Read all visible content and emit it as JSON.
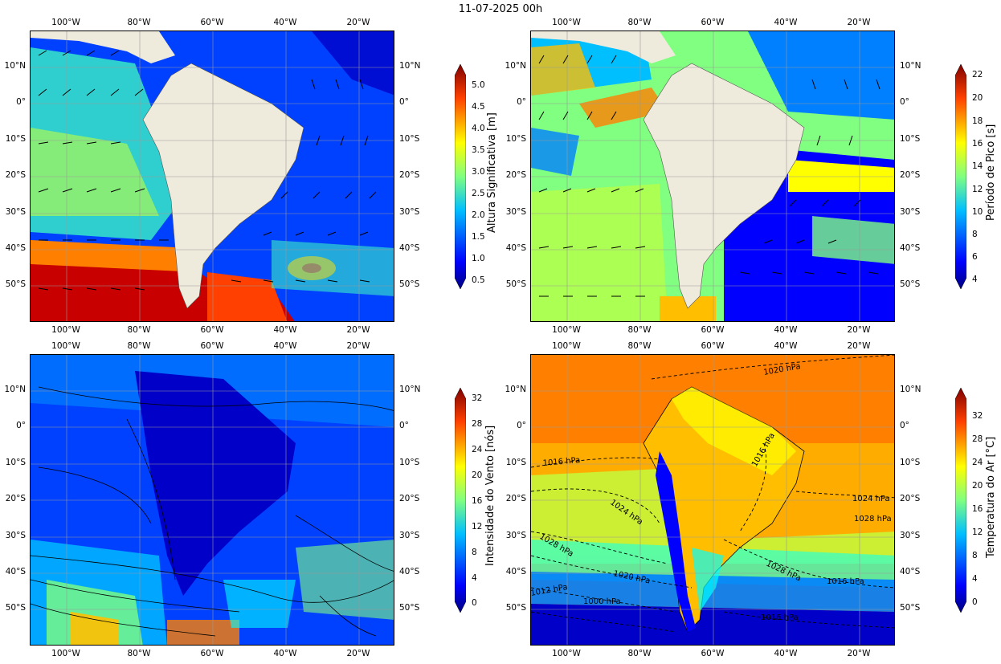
{
  "title": "11-07-2025 00h",
  "lon_ticks": [
    "100°W",
    "80°W",
    "60°W",
    "40°W",
    "20°W"
  ],
  "lat_ticks": [
    "10°N",
    "0°",
    "10°S",
    "20°S",
    "30°S",
    "40°S",
    "50°S"
  ],
  "panels": [
    {
      "id": "wave-height",
      "colorbar": {
        "label": "Altura Significativa [m]",
        "ticks": [
          "0.5",
          "1.0",
          "1.5",
          "2.0",
          "2.5",
          "3.0",
          "3.5",
          "4.0",
          "4.5",
          "5.0"
        ]
      }
    },
    {
      "id": "peak-period",
      "colorbar": {
        "label": "Período de Pico [s]",
        "ticks": [
          "4",
          "6",
          "8",
          "10",
          "12",
          "14",
          "16",
          "18",
          "20",
          "22"
        ]
      }
    },
    {
      "id": "wind-speed",
      "colorbar": {
        "label": "Intensidade do Vento [nós]",
        "ticks": [
          "0",
          "4",
          "8",
          "12",
          "16",
          "20",
          "24",
          "28",
          "32"
        ]
      }
    },
    {
      "id": "air-temperature",
      "colorbar": {
        "label": "Temperatura do Ar [°C]",
        "ticks": [
          "0",
          "4",
          "8",
          "12",
          "16",
          "20",
          "24",
          "28",
          "32"
        ]
      },
      "isobar_labels": [
        "1020 hPa",
        "1016 hPa",
        "1016 hPa",
        "1024 hPa",
        "1024 hPa",
        "1028 hPa",
        "1028 hPa",
        "1020 hPa",
        "1028 hPa",
        "1016 hPa",
        "1000 hPa",
        "1012 hPa",
        "1016 hPa"
      ]
    }
  ],
  "colormap": [
    "#00007f",
    "#0000c8",
    "#0000ff",
    "#0040ff",
    "#0080ff",
    "#00bfff",
    "#00ffff",
    "#40ffbf",
    "#80ff80",
    "#bfff40",
    "#ffff00",
    "#ffbf00",
    "#ff8000",
    "#ff4000",
    "#ff0000",
    "#c80000",
    "#7f0000"
  ],
  "land_color": "#efebdc"
}
